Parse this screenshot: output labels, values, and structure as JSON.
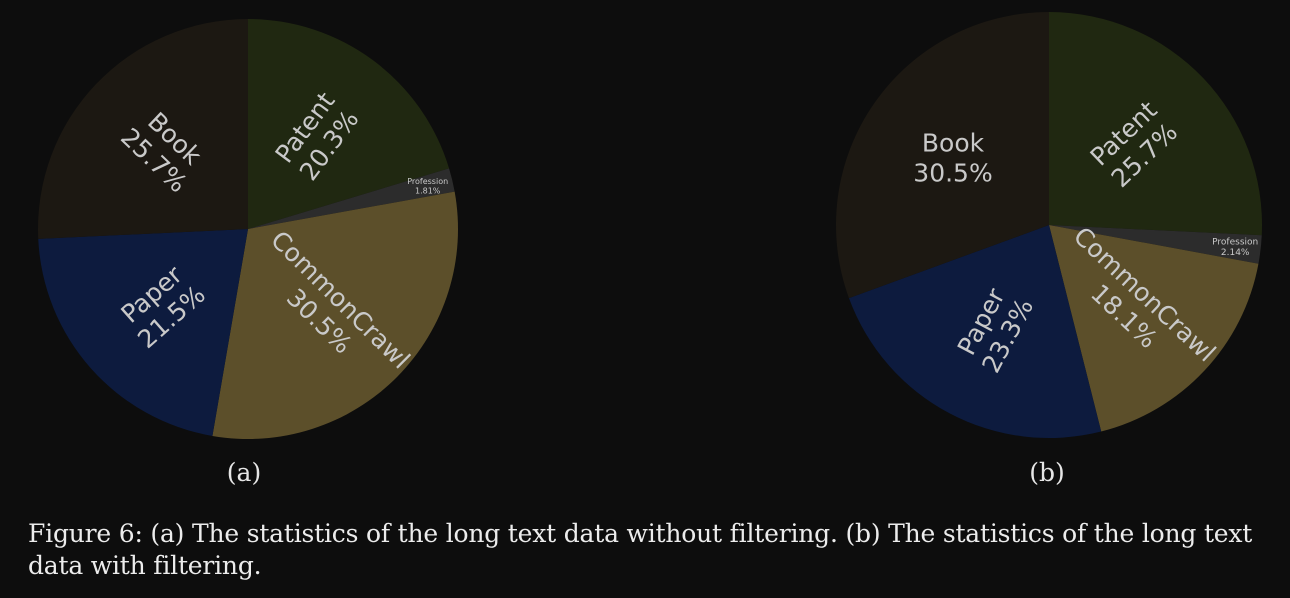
{
  "chart_data": [
    {
      "type": "pie",
      "subtitle": "(a)",
      "slices": [
        {
          "label": "Patent",
          "value": 20.3,
          "text": "20.3%",
          "color": "#202811"
        },
        {
          "label": "Profession",
          "value": 1.81,
          "text": "1.81%",
          "color": "#2c2c2c"
        },
        {
          "label": "CommonCrawl",
          "value": 30.5,
          "text": "30.5%",
          "color": "#5c4f2a"
        },
        {
          "label": "Paper",
          "value": 21.5,
          "text": "21.5%",
          "color": "#0d1b3e"
        },
        {
          "label": "Book",
          "value": 25.7,
          "text": "25.7%",
          "color": "#1c1812"
        }
      ]
    },
    {
      "type": "pie",
      "subtitle": "(b)",
      "slices": [
        {
          "label": "Patent",
          "value": 25.7,
          "text": "25.7%",
          "color": "#202811"
        },
        {
          "label": "Profession",
          "value": 2.14,
          "text": "2.14%",
          "color": "#2c2c2c"
        },
        {
          "label": "CommonCrawl",
          "value": 18.1,
          "text": "18.1%",
          "color": "#5c4f2a"
        },
        {
          "label": "Paper",
          "value": 23.3,
          "text": "23.3%",
          "color": "#0d1b3e"
        },
        {
          "label": "Book",
          "value": 30.5,
          "text": "30.5%",
          "color": "#1c1812"
        }
      ]
    }
  ],
  "caption": "Figure 6: (a) The statistics of the long text data without filtering. (b) The statistics of the long text data with filtering."
}
